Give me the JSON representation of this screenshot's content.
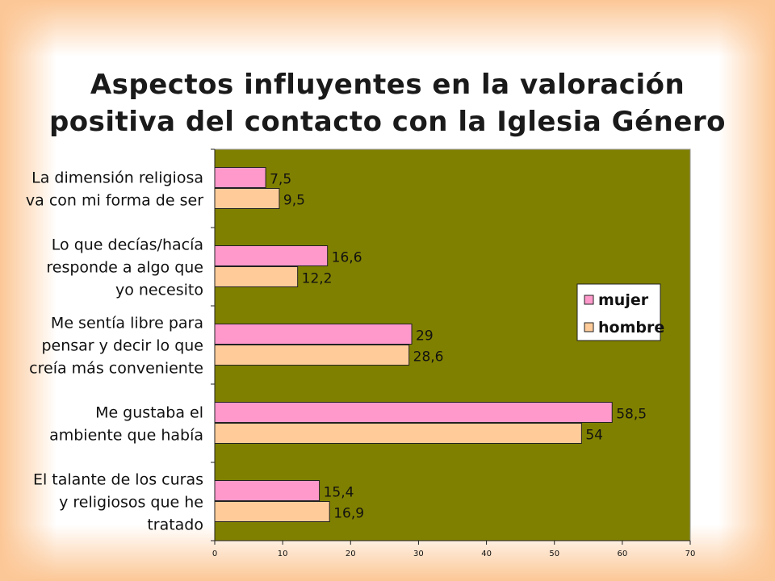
{
  "title_lines": [
    "Aspectos influyentes en la valoración",
    "positiva del contacto con la Iglesia Género"
  ],
  "colors": {
    "plot_bg": "#808000",
    "mujer": "#ff99cc",
    "hombre": "#ffcc99",
    "background": "#fcc796"
  },
  "chart_data": {
    "type": "bar",
    "orientation": "horizontal",
    "title": "Aspectos influyentes en la valoración positiva del contacto con la Iglesia Género",
    "categories": [
      [
        "La dimensión religiosa",
        "va con mi forma de ser"
      ],
      [
        "Lo que decías/hacía",
        "responde a algo que",
        "yo necesito"
      ],
      [
        "Me sentía libre para",
        "pensar y decir lo que",
        "creía más conveniente"
      ],
      [
        "Me gustaba el",
        "ambiente que había"
      ],
      [
        "El talante de los curas",
        "y religiosos que he",
        "tratado"
      ]
    ],
    "series": [
      {
        "name": "mujer",
        "values": [
          7.5,
          16.6,
          29,
          58.5,
          15.4
        ],
        "labels": [
          "7,5",
          "16,6",
          "29",
          "58,5",
          "15,4"
        ]
      },
      {
        "name": "hombre",
        "values": [
          9.5,
          12.2,
          28.6,
          54,
          16.9
        ],
        "labels": [
          "9,5",
          "12,2",
          "28,6",
          "54",
          "16,9"
        ]
      }
    ],
    "xlim": [
      0,
      70
    ],
    "xticks": [
      0,
      10,
      20,
      30,
      40,
      50,
      60,
      70
    ],
    "xlabel": "",
    "ylabel": "",
    "grid": false,
    "legend": "right"
  }
}
